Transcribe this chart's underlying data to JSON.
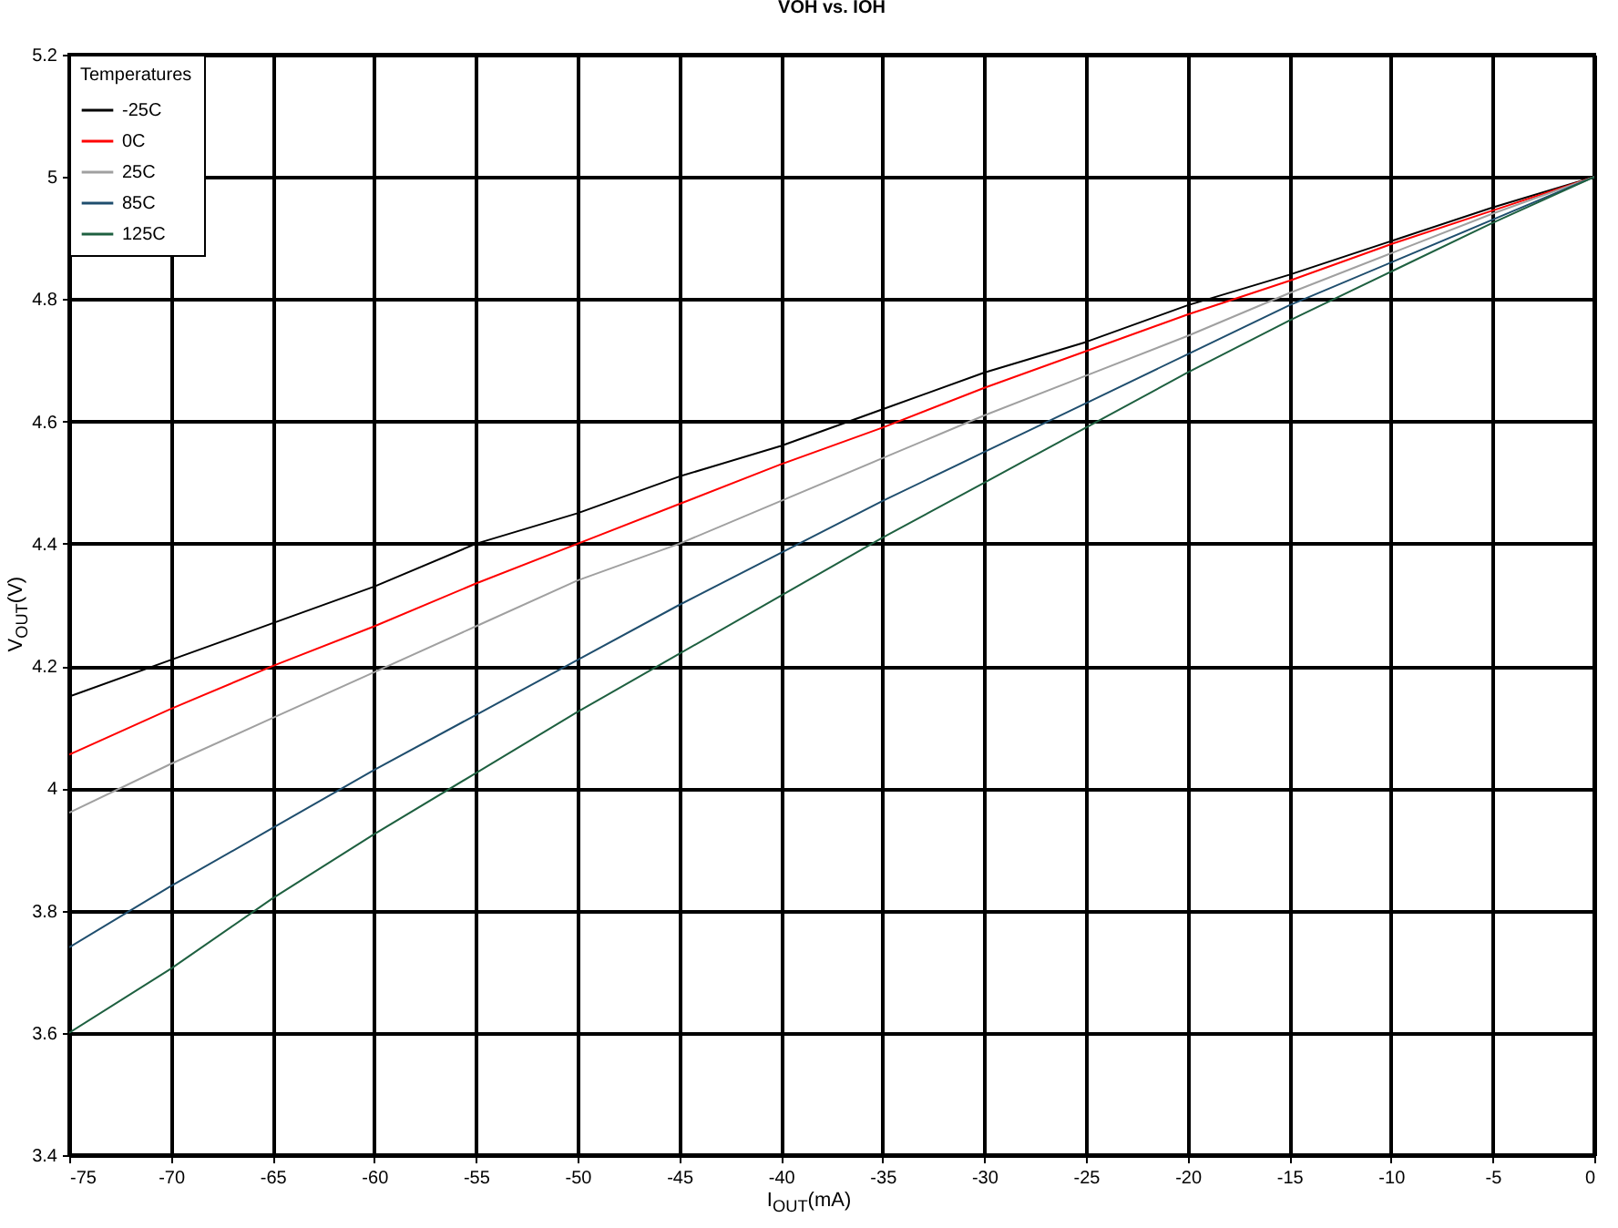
{
  "chart_data": {
    "type": "line",
    "title": "VOH vs. IOH",
    "xlabel": "I$_{OUT}$(mA)",
    "ylabel": "V$_{OUT}$(V)",
    "legend_title": "Temperatures",
    "x": [
      -75,
      -70,
      -65,
      -60,
      -55,
      -50,
      -45,
      -40,
      -35,
      -30,
      -25,
      -20,
      -15,
      -10,
      -5,
      0
    ],
    "series": [
      {
        "name": "-25C",
        "color": "#000000",
        "values": [
          4.15,
          4.21,
          4.27,
          4.33,
          4.4,
          4.45,
          4.51,
          4.56,
          4.62,
          4.68,
          4.73,
          4.79,
          4.84,
          4.895,
          4.95,
          5.0
        ]
      },
      {
        "name": "0C",
        "color": "#ff0000",
        "values": [
          4.055,
          4.13,
          4.2,
          4.265,
          4.335,
          4.4,
          4.465,
          4.53,
          4.59,
          4.655,
          4.715,
          4.775,
          4.83,
          4.89,
          4.945,
          5.0
        ]
      },
      {
        "name": "25C",
        "color": "#a0a0a0",
        "values": [
          3.96,
          4.04,
          4.115,
          4.19,
          4.265,
          4.34,
          4.4,
          4.47,
          4.54,
          4.61,
          4.675,
          4.74,
          4.81,
          4.875,
          4.94,
          5.0
        ]
      },
      {
        "name": "85C",
        "color": "#1f4e6e",
        "values": [
          3.74,
          3.84,
          3.935,
          4.03,
          4.12,
          4.21,
          4.3,
          4.385,
          4.47,
          4.55,
          4.63,
          4.71,
          4.79,
          4.86,
          4.93,
          5.0
        ]
      },
      {
        "name": "125C",
        "color": "#1e6040",
        "values": [
          3.6,
          3.705,
          3.82,
          3.925,
          4.025,
          4.125,
          4.22,
          4.315,
          4.41,
          4.5,
          4.59,
          4.68,
          4.765,
          4.845,
          4.925,
          5.0
        ]
      }
    ],
    "xlim": [
      -75,
      0
    ],
    "xticks": [
      -75,
      -70,
      -65,
      -60,
      -55,
      -50,
      -45,
      -40,
      -35,
      -30,
      -25,
      -20,
      -15,
      -10,
      -5,
      0
    ],
    "ylim": [
      3.4,
      5.2
    ],
    "yticks": [
      3.4,
      3.6,
      3.8,
      4,
      4.2,
      4.4,
      4.6,
      4.8,
      5,
      5.2
    ],
    "grid": true,
    "legend": "top left"
  }
}
